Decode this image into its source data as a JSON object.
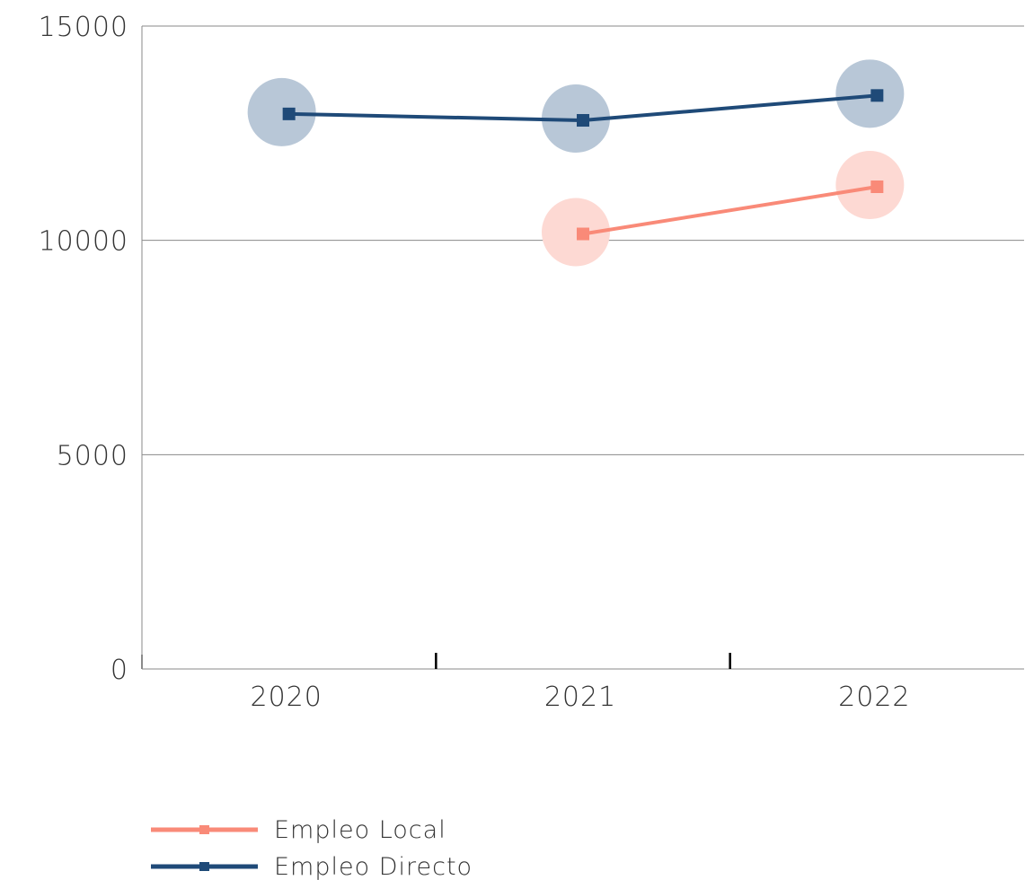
{
  "chart_data": {
    "type": "line",
    "title": "",
    "xlabel": "",
    "ylabel": "",
    "categories": [
      "2020",
      "2021",
      "2022"
    ],
    "y_ticks": [
      "0",
      "5000",
      "10000",
      "15000"
    ],
    "ylim": [
      0,
      15000
    ],
    "grid": true,
    "legend_position": "bottom-left",
    "series": [
      {
        "name": "Empleo Local",
        "color": "#F98A78",
        "halo_color": "#FDD9D3",
        "values": [
          null,
          10150,
          11250
        ]
      },
      {
        "name": "Empleo Directo",
        "color": "#1F4A78",
        "halo_color": "#B8C7D7",
        "values": [
          12950,
          12800,
          13380
        ]
      }
    ]
  }
}
